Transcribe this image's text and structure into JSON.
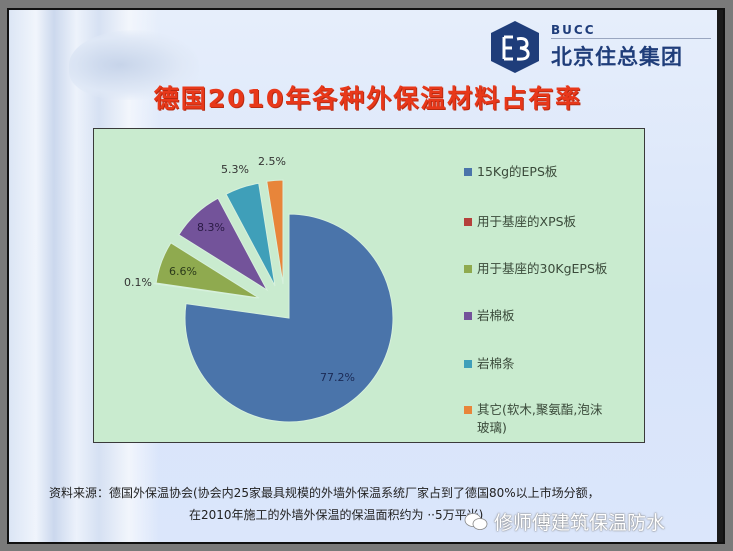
{
  "logo": {
    "en": "BUCC",
    "cn": "北京住总集团",
    "color": "#1f3d7a"
  },
  "title": "德国2010年各种外保温材料占有率",
  "chart_data": {
    "type": "pie",
    "title": "德国2010年各种外保温材料占有率",
    "categories": [
      "15Kg的EPS板",
      "用于基座的XPS板",
      "用于基座的30KgEPS板",
      "岩棉板",
      "岩棉条",
      "其它(软木,聚氨酯,泡沫玻璃)"
    ],
    "values": [
      77.2,
      0.1,
      6.6,
      8.3,
      5.3,
      2.5
    ],
    "labels": [
      "77.2%",
      "0.1%",
      "6.6%",
      "8.3%",
      "5.3%",
      "2.5%"
    ],
    "colors": [
      "#4a74aa",
      "#b5403b",
      "#8faa4f",
      "#73539a",
      "#3f9fb9",
      "#e8853a"
    ],
    "exploded": [
      false,
      true,
      true,
      true,
      true,
      true
    ],
    "start_angle": "12 o'clock, clockwise",
    "legend_position": "right"
  },
  "legend": [
    {
      "label": "15Kg的EPS板",
      "color": "#4a74aa"
    },
    {
      "label": "用于基座的XPS板",
      "color": "#b5403b"
    },
    {
      "label": "用于基座的30KgEPS板",
      "color": "#8faa4f"
    },
    {
      "label": "岩棉板",
      "color": "#73539a"
    },
    {
      "label": "岩棉条",
      "color": "#3f9fb9"
    },
    {
      "label": "其它(软木,聚氨酯,泡沫玻璃)",
      "color": "#e8853a"
    }
  ],
  "source": {
    "line1": "资料来源：德国外保温协会(协会内25家最具规模的外墙外保温系统厂家占到了德国80%以上市场分额，",
    "line2": "在2010年施工的外墙外保温的保温面积约为 ··5万平米)"
  },
  "watermark": {
    "text": "修师傅建筑保温防水"
  }
}
